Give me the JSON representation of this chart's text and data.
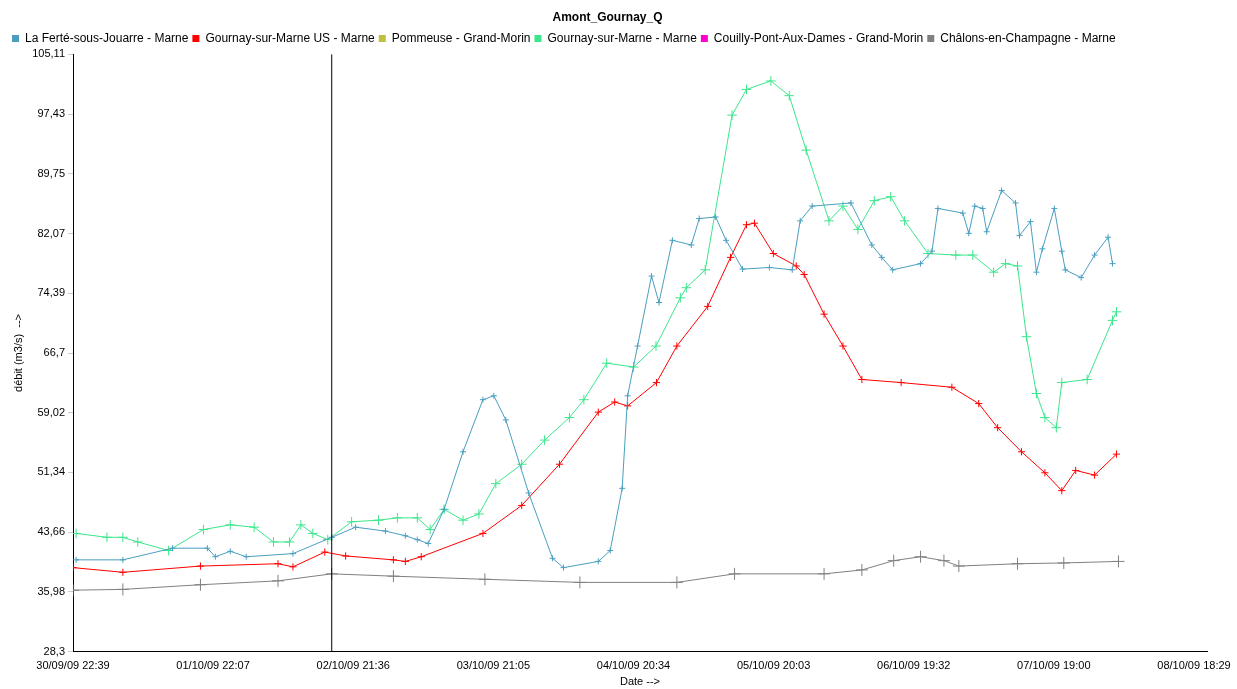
{
  "chart_data": {
    "type": "line",
    "title": "Amont_Gournay_Q",
    "xlabel": "Date -->",
    "ylabel": "débit (m3/s)  -->",
    "marker": "cross",
    "line_style": "solid",
    "grid": false,
    "legend": "top left",
    "xlim": [
      "--09-30T22:39",
      "--10-08T20:40"
    ],
    "xticks": [
      {
        "value": "--09-30T22:39",
        "label": "30/09/09 22:39"
      },
      {
        "value": "--10-01T22:07",
        "label": "01/10/09 22:07"
      },
      {
        "value": "--10-02T21:36",
        "label": "02/10/09 21:36"
      },
      {
        "value": "--10-03T21:05",
        "label": "03/10/09 21:05"
      },
      {
        "value": "--10-04T20:34",
        "label": "04/10/09 20:34"
      },
      {
        "value": "--10-05T20:03",
        "label": "05/10/09 20:03"
      },
      {
        "value": "--10-06T19:32",
        "label": "06/10/09 19:32"
      },
      {
        "value": "--10-07T19:00",
        "label": "07/10/09 19:00"
      },
      {
        "value": "--10-08T18:29",
        "label": "08/10/09 18:29"
      }
    ],
    "ylim": [
      28.3,
      105.11
    ],
    "yticks": [
      {
        "value": 28.3,
        "label": "28,3"
      },
      {
        "value": 35.98,
        "label": "35,98"
      },
      {
        "value": 43.66,
        "label": "43,66"
      },
      {
        "value": 51.34,
        "label": "51,34"
      },
      {
        "value": 59.02,
        "label": "59,02"
      },
      {
        "value": 66.7,
        "label": "66,7"
      },
      {
        "value": 74.39,
        "label": "74,39"
      },
      {
        "value": 82.07,
        "label": "82,07"
      },
      {
        "value": 89.75,
        "label": "89,75"
      },
      {
        "value": 97.43,
        "label": "97,43"
      },
      {
        "value": 105.11,
        "label": "105,11"
      }
    ],
    "ref_lines": [
      {
        "axis": "x",
        "value": "--10-02T18:00",
        "color": "#000000"
      }
    ],
    "series": [
      {
        "name": "La Ferté-sous-Jouarre - Marne",
        "color": "#4a9fc0",
        "x": [
          "--09-30T23:10",
          "--10-01T07:00",
          "--10-01T15:20",
          "--10-01T21:10",
          "--10-01T22:30",
          "--10-02T01:00",
          "--10-02T03:40",
          "--10-02T11:30",
          "--10-02T18:00",
          "--10-02T22:00",
          "--10-03T03:00",
          "--10-03T06:20",
          "--10-03T08:20",
          "--10-03T10:10",
          "--10-03T12:50",
          "--10-03T16:00",
          "--10-03T19:20",
          "--10-03T21:10",
          "--10-03T23:10",
          "--10-04T03:00",
          "--10-04T07:00",
          "--10-04T08:50",
          "--10-04T14:40",
          "--10-04T16:40",
          "--10-04T18:40",
          "--10-04T19:35",
          "--10-04T21:15",
          "--10-04T23:35",
          "--10-05T00:50",
          "--10-05T03:05",
          "--10-05T06:15",
          "--10-05T07:35",
          "--10-05T10:20",
          "--10-05T12:05",
          "--10-05T14:50",
          "--10-05T19:20",
          "--10-05T23:10",
          "--10-06T00:30",
          "--10-06T02:30",
          "--10-06T09:00",
          "--10-06T12:30",
          "--10-06T14:10",
          "--10-06T16:00",
          "--10-06T20:40",
          "--10-06T22:35",
          "--10-06T23:35",
          "--10-07T03:45",
          "--10-07T04:45",
          "--10-07T05:45",
          "--10-07T07:05",
          "--10-07T07:45",
          "--10-07T10:15",
          "--10-07T12:35",
          "--10-07T13:15",
          "--10-07T15:05",
          "--10-07T16:05",
          "--10-07T17:05",
          "--10-07T19:05",
          "--10-07T20:20",
          "--10-07T20:55",
          "--10-07T23:35",
          "--10-08T01:50",
          "--10-08T04:05",
          "--10-08T04:50"
        ],
        "values": [
          40.1,
          40.1,
          41.6,
          41.6,
          40.5,
          41.2,
          40.5,
          40.9,
          43.0,
          44.3,
          43.8,
          43.2,
          42.7,
          42.2,
          46.6,
          54.0,
          60.7,
          61.2,
          58.1,
          48.7,
          40.3,
          39.1,
          39.9,
          41.3,
          49.3,
          61.2,
          67.6,
          76.6,
          73.2,
          81.2,
          80.6,
          84.0,
          84.2,
          81.2,
          77.5,
          77.7,
          77.4,
          83.7,
          85.6,
          86.0,
          80.6,
          79.0,
          77.4,
          78.2,
          79.8,
          85.3,
          84.7,
          82.1,
          85.6,
          85.3,
          82.3,
          87.6,
          86.0,
          81.8,
          83.6,
          77.1,
          80.1,
          85.3,
          79.8,
          77.4,
          76.4,
          79.3,
          81.6,
          78.2
        ]
      },
      {
        "name": "Gournay-sur-Marne US - Marne",
        "color": "#ff0000",
        "x": [
          "--09-30T22:39",
          "--10-01T07:00",
          "--10-01T20:00",
          "--10-02T09:00",
          "--10-02T11:30",
          "--10-02T16:50",
          "--10-02T20:20",
          "--10-03T04:20",
          "--10-03T06:20",
          "--10-03T09:00",
          "--10-03T19:20",
          "--10-04T01:50",
          "--10-04T08:10",
          "--10-04T14:40",
          "--10-04T17:25",
          "--10-04T19:35",
          "--10-05T00:25",
          "--10-05T03:50",
          "--10-05T09:00",
          "--10-05T12:50",
          "--10-05T15:30",
          "--10-05T16:50",
          "--10-05T20:00",
          "--10-05T23:50",
          "--10-06T01:10",
          "--10-06T04:30",
          "--10-06T07:40",
          "--10-06T10:50",
          "--10-06T17:25",
          "--10-07T01:55",
          "--10-07T06:25",
          "--10-07T09:35",
          "--10-07T13:35",
          "--10-07T17:30",
          "--10-07T20:20",
          "--10-07T22:40",
          "--10-08T01:50",
          "--10-08T05:30"
        ],
        "values": [
          39.1,
          38.5,
          39.3,
          39.6,
          39.2,
          41.1,
          40.6,
          40.1,
          39.9,
          40.5,
          43.5,
          47.1,
          52.4,
          59.1,
          60.4,
          59.9,
          62.9,
          67.6,
          72.7,
          79.0,
          83.2,
          83.4,
          79.5,
          77.9,
          76.8,
          71.7,
          67.6,
          63.3,
          62.9,
          62.3,
          60.2,
          57.1,
          54.0,
          51.3,
          49.0,
          51.6,
          51.0,
          53.7
        ]
      },
      {
        "name": "Pommeuse - Grand-Morin",
        "color": "#c0c040"
      },
      {
        "name": "Gournay-sur-Marne - Marne",
        "color": "#3ce68c",
        "x": [
          "--09-30T23:10",
          "--10-01T04:20",
          "--10-01T07:00",
          "--10-01T09:30",
          "--10-01T14:40",
          "--10-01T20:30",
          "--10-02T01:00",
          "--10-02T05:00",
          "--10-02T08:15",
          "--10-02T10:55",
          "--10-02T12:50",
          "--10-02T14:50",
          "--10-02T17:20",
          "--10-02T21:20",
          "--10-03T01:50",
          "--10-03T05:00",
          "--10-03T08:20",
          "--10-03T10:30",
          "--10-03T12:50",
          "--10-03T16:00",
          "--10-03T18:40",
          "--10-03T21:30",
          "--10-04T01:50",
          "--10-04T05:40",
          "--10-04T09:50",
          "--10-04T12:15",
          "--10-04T16:05",
          "--10-04T20:35",
          "--10-05T00:20",
          "--10-05T04:25",
          "--10-05T05:25",
          "--10-05T08:35",
          "--10-05T13:05",
          "--10-05T15:30",
          "--10-05T19:35",
          "--10-05T22:40",
          "--10-06T01:30",
          "--10-06T05:20",
          "--10-06T07:40",
          "--10-06T10:10",
          "--10-06T12:55",
          "--10-06T15:40",
          "--10-06T18:00",
          "--10-06T21:55",
          "--10-07T02:35",
          "--10-07T05:25",
          "--10-07T08:55",
          "--10-07T10:55",
          "--10-07T12:55",
          "--10-07T14:25",
          "--10-07T16:05",
          "--10-07T17:30",
          "--10-07T19:25",
          "--10-07T20:20",
          "--10-08T00:35",
          "--10-08T04:50",
          "--10-08T05:30"
        ],
        "values": [
          43.5,
          43.0,
          43.0,
          42.4,
          41.3,
          44.0,
          44.6,
          44.3,
          42.4,
          42.4,
          44.6,
          43.5,
          42.7,
          45.0,
          45.2,
          45.5,
          45.5,
          44.0,
          46.6,
          45.2,
          46.0,
          49.9,
          52.4,
          55.5,
          58.4,
          60.7,
          65.4,
          64.9,
          67.6,
          73.8,
          75.1,
          77.4,
          97.3,
          100.6,
          101.7,
          99.8,
          92.8,
          83.7,
          85.6,
          82.6,
          86.3,
          86.8,
          83.7,
          79.5,
          79.3,
          79.3,
          77.1,
          78.2,
          77.9,
          68.8,
          61.5,
          58.4,
          57.1,
          62.9,
          63.3,
          70.9,
          72.0
        ]
      },
      {
        "name": "Couilly-Pont-Aux-Dames - Grand-Morin",
        "color": "#ff00cc"
      },
      {
        "name": "Châlons-en-Champagne - Marne",
        "color": "#808080",
        "x": [
          "--09-30T22:39",
          "--10-01T07:00",
          "--10-01T20:00",
          "--10-02T09:00",
          "--10-02T18:00",
          "--10-03T04:20",
          "--10-03T19:40",
          "--10-04T11:35",
          "--10-05T03:50",
          "--10-05T13:30",
          "--10-06T04:30",
          "--10-06T10:50",
          "--10-06T16:10",
          "--10-06T20:40",
          "--10-07T00:35",
          "--10-07T03:05",
          "--10-07T12:55",
          "--10-07T20:40",
          "--10-08T05:50"
        ],
        "values": [
          36.2,
          36.3,
          36.9,
          37.4,
          38.3,
          38.0,
          37.6,
          37.2,
          37.2,
          38.3,
          38.3,
          38.8,
          40.0,
          40.5,
          40.0,
          39.3,
          39.6,
          39.7,
          39.9
        ]
      }
    ]
  }
}
